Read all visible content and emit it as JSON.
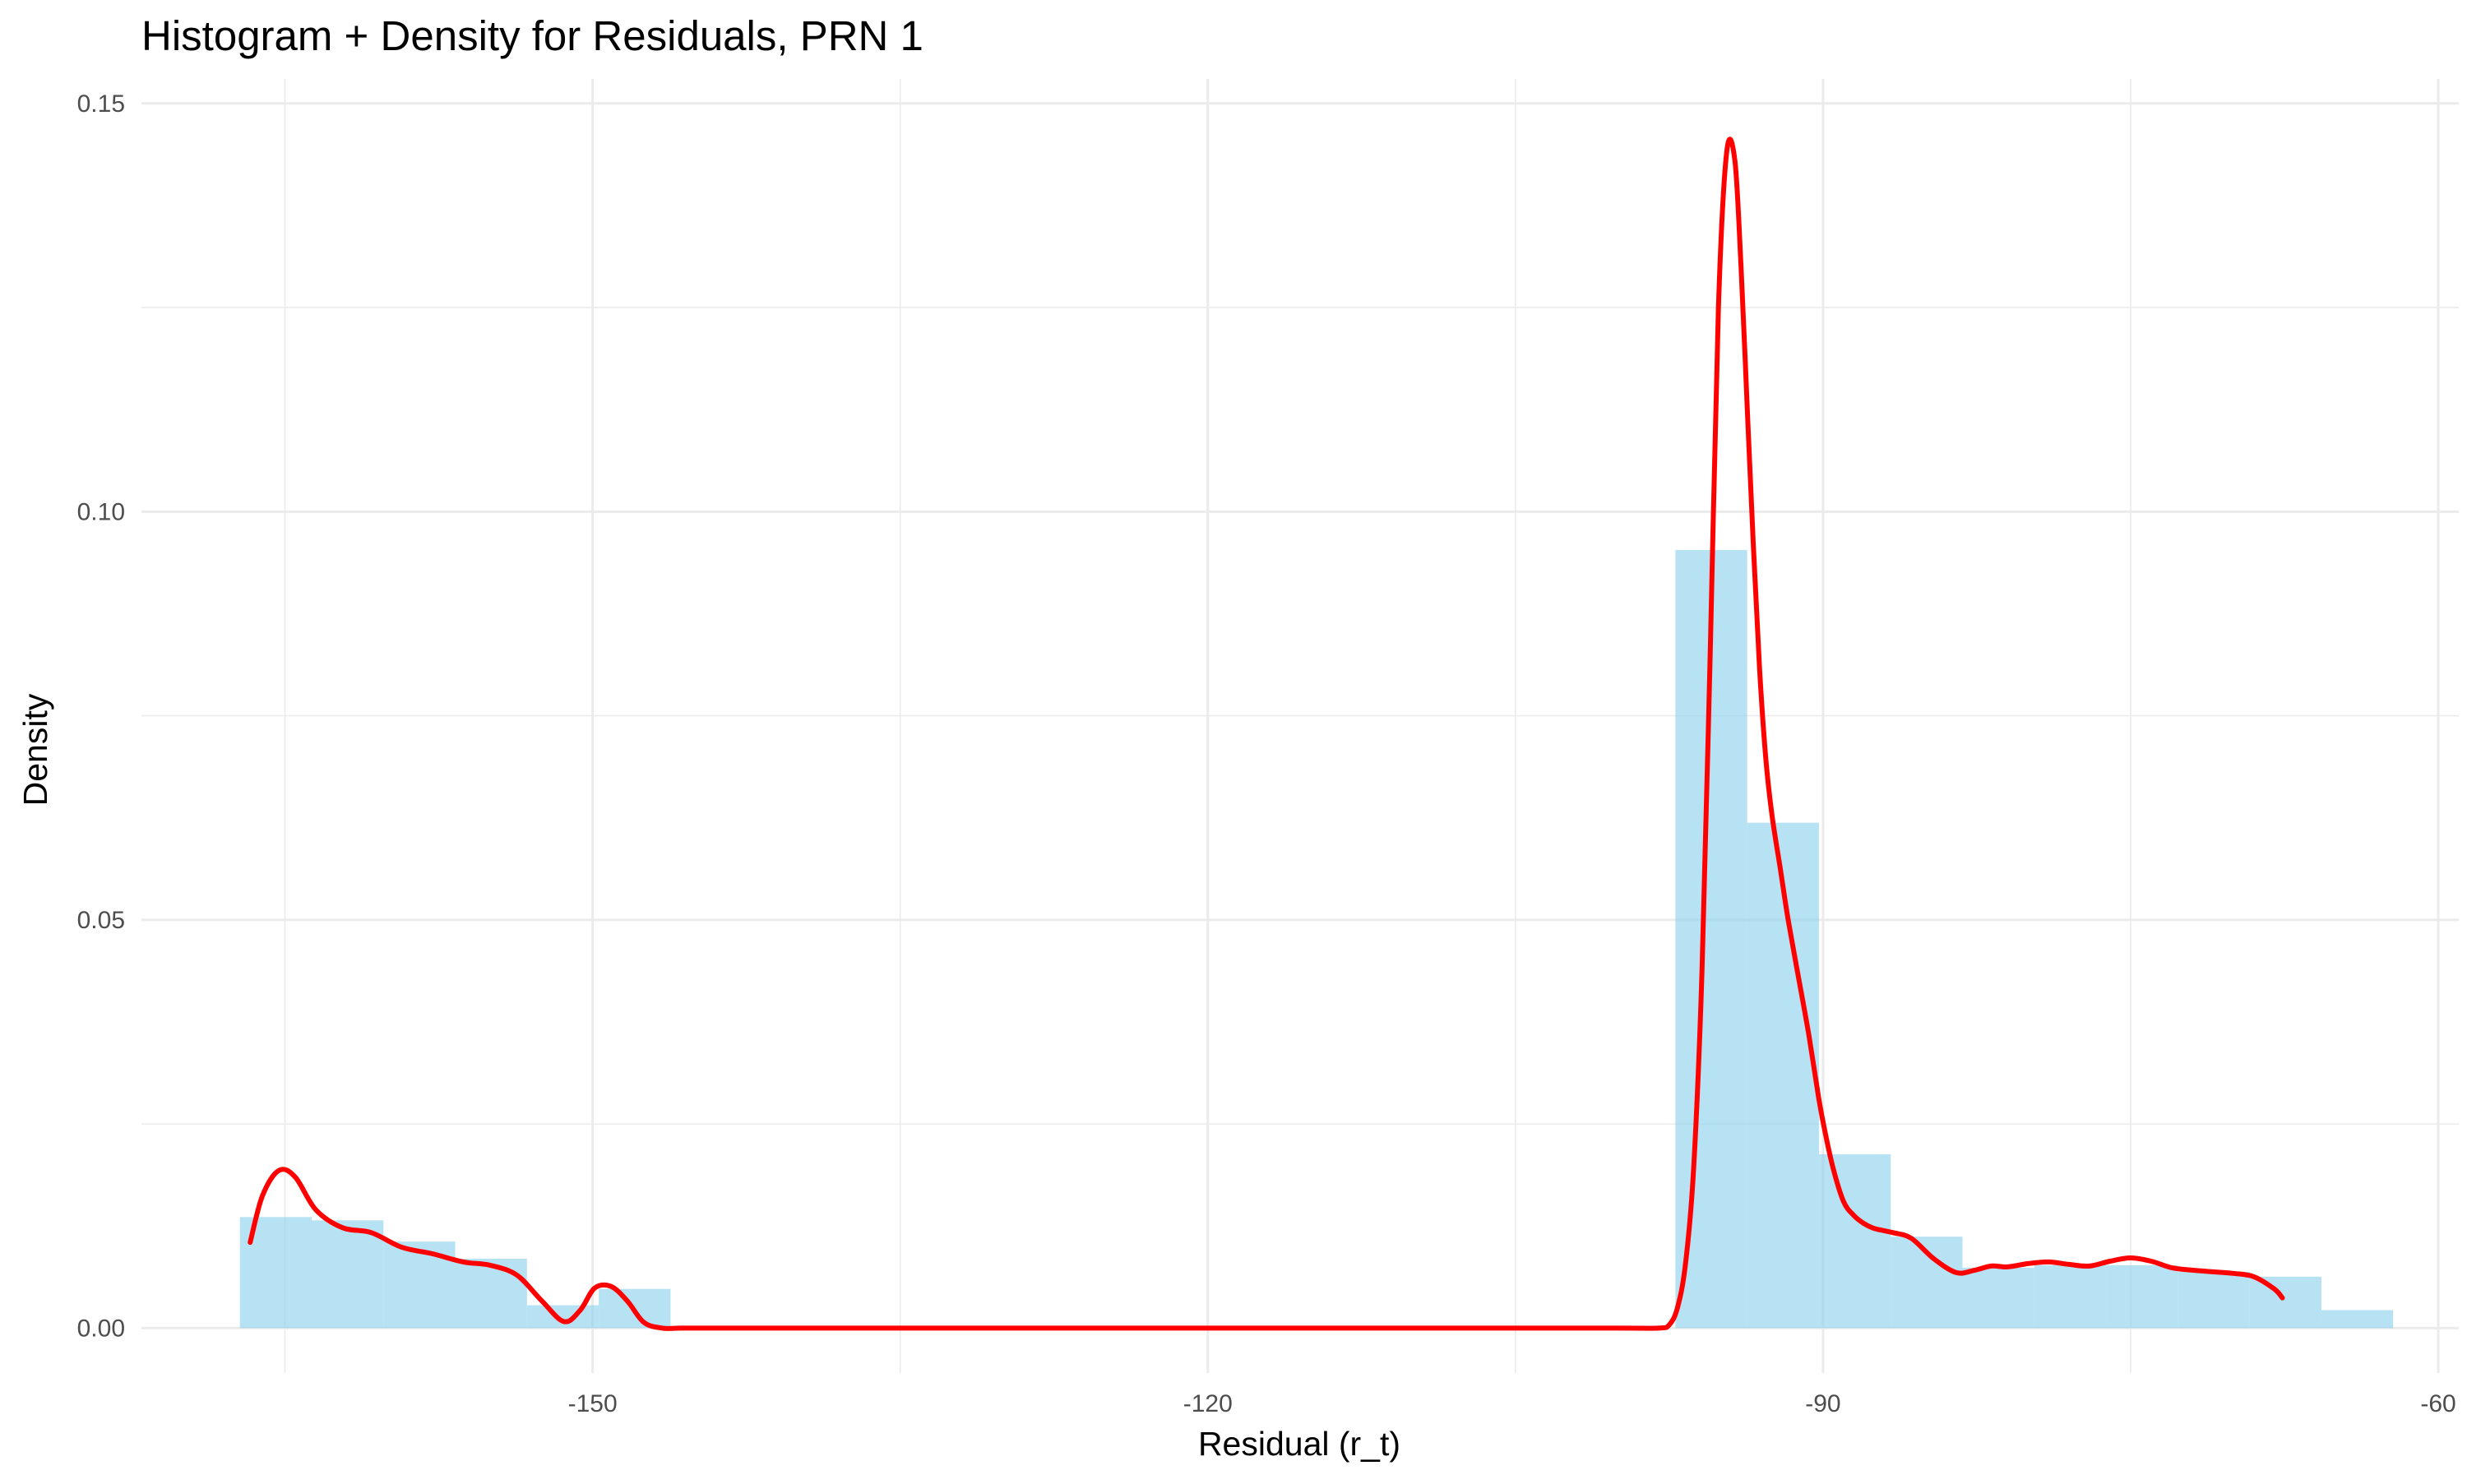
{
  "chart_data": {
    "type": "bar",
    "title": "Histogram + Density for Residuals, PRN 1",
    "xlabel": "Residual (r_t)",
    "ylabel": "Density",
    "xlim": [
      -172,
      -59
    ],
    "ylim": [
      -0.0055,
      0.153
    ],
    "xticks": [
      -150,
      -120,
      -90,
      -60
    ],
    "xtick_labels": [
      "-150",
      "-120",
      "-90",
      "-60"
    ],
    "yticks": [
      0,
      0.05,
      0.1,
      0.15
    ],
    "ytick_labels": [
      "0.00",
      "0.05",
      "0.10",
      "0.15"
    ],
    "grid": true,
    "legend": "none",
    "colors": {
      "bars": "#87ceeb",
      "density": "#ff0000",
      "grid": "#ebebeb"
    },
    "histogram": {
      "bin_width": 3.5,
      "bin_starts": [
        -167.2,
        -163.7,
        -160.2,
        -156.7,
        -153.2,
        -149.7,
        -146.2,
        -142.7,
        -139.2,
        -135.7,
        -132.2,
        -128.7,
        -125.2,
        -121.7,
        -118.2,
        -114.7,
        -111.2,
        -107.7,
        -104.2,
        -100.7,
        -97.2,
        -93.7,
        -90.2,
        -86.7,
        -83.2,
        -79.7,
        -76.2,
        -72.7,
        -69.2,
        -65.7
      ],
      "values": [
        0.0136,
        0.0132,
        0.0106,
        0.0085,
        0.0028,
        0.0048,
        0,
        0,
        0,
        0,
        0,
        0,
        0,
        0,
        0,
        0,
        0,
        0,
        0,
        0,
        0.0953,
        0.0619,
        0.0213,
        0.0112,
        0.0074,
        0.0077,
        0.0077,
        0.0069,
        0.0063,
        0.0022
      ]
    },
    "density": {
      "name": "density",
      "x": [
        -166.7,
        -166.1,
        -165.3,
        -164.5,
        -163.5,
        -162.2,
        -160.8,
        -159.3,
        -157.8,
        -156.3,
        -155.0,
        -153.7,
        -152.5,
        -151.4,
        -150.6,
        -149.9,
        -149.1,
        -148.3,
        -147.5,
        -146.6,
        -145.7,
        -144.9,
        -144.0,
        -142.0,
        -130.0,
        -120.0,
        -110.0,
        -100.0,
        -98.0,
        -97.5,
        -97.1,
        -96.7,
        -96.3,
        -95.9,
        -95.5,
        -95.1,
        -94.7,
        -94.3,
        -94.0,
        -93.7,
        -93.4,
        -93.1,
        -92.8,
        -92.5,
        -92.1,
        -91.7,
        -91.2,
        -90.7,
        -90.2,
        -89.9,
        -89.5,
        -89.0,
        -88.5,
        -88.0,
        -87.5,
        -86.6,
        -85.7,
        -84.6,
        -83.5,
        -82.6,
        -81.8,
        -81.0,
        -80.0,
        -79.0,
        -78.0,
        -77.0,
        -76.0,
        -75.0,
        -74.0,
        -73.0,
        -72.0,
        -71.0,
        -70.0,
        -69.0,
        -68.0,
        -67.6
      ],
      "y": [
        0.0105,
        0.0162,
        0.0193,
        0.0185,
        0.0145,
        0.0123,
        0.0117,
        0.0099,
        0.0091,
        0.0081,
        0.0077,
        0.0065,
        0.0034,
        0.0008,
        0.0022,
        0.0049,
        0.0051,
        0.0033,
        0.0007,
        0.0,
        0.0,
        0.0,
        0.0,
        0.0,
        0.0,
        0.0,
        0.0,
        0.0,
        0.0,
        0.0004,
        0.0025,
        0.008,
        0.02,
        0.044,
        0.083,
        0.125,
        0.144,
        0.143,
        0.13,
        0.113,
        0.096,
        0.081,
        0.07,
        0.063,
        0.0565,
        0.05,
        0.043,
        0.036,
        0.028,
        0.024,
        0.0195,
        0.0155,
        0.0138,
        0.0128,
        0.0122,
        0.0117,
        0.011,
        0.0085,
        0.0068,
        0.0071,
        0.0076,
        0.0075,
        0.0079,
        0.0081,
        0.0078,
        0.0076,
        0.0082,
        0.0086,
        0.0082,
        0.0074,
        0.0071,
        0.0069,
        0.0067,
        0.0063,
        0.0048,
        0.0037
      ]
    }
  }
}
